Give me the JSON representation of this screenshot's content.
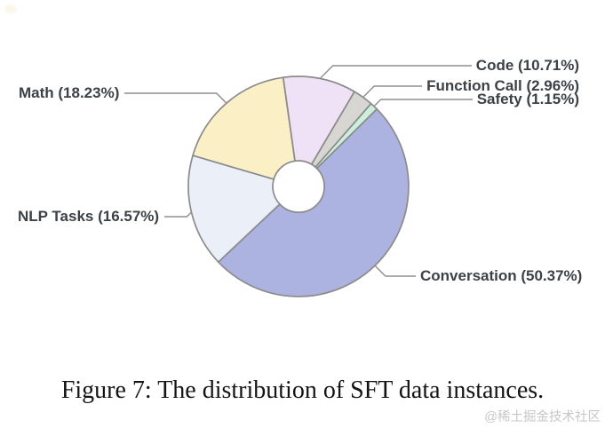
{
  "figure": {
    "caption": "Figure 7: The distribution of SFT data instances.",
    "watermark": "@稀土掘金技术社区"
  },
  "chart_data": {
    "type": "pie",
    "subtype": "donut",
    "units": "percent",
    "order": "clockwise-from-top",
    "start_angle_deg": -8,
    "slices": [
      {
        "name": "Code",
        "value": 10.71,
        "label": "Code (10.71%)",
        "color": "#EFE1F6"
      },
      {
        "name": "Function Call",
        "value": 2.96,
        "label": "Function Call (2.96%)",
        "color": "#D7D6D2"
      },
      {
        "name": "Safety",
        "value": 1.15,
        "label": "Safety (1.15%)",
        "color": "#CBEFDA"
      },
      {
        "name": "Conversation",
        "value": 50.37,
        "label": "Conversation (50.37%)",
        "color": "#ADB3E1"
      },
      {
        "name": "NLP Tasks",
        "value": 16.57,
        "label": "NLP Tasks (16.57%)",
        "color": "#EBEFF7"
      },
      {
        "name": "Math",
        "value": 18.23,
        "label": "Math (18.23%)",
        "color": "#FAEFC5"
      }
    ],
    "slice_stroke_color": "#8B8B8B",
    "leader_line_color": "#8F8F8F",
    "label_text_color": "#3C4147"
  }
}
